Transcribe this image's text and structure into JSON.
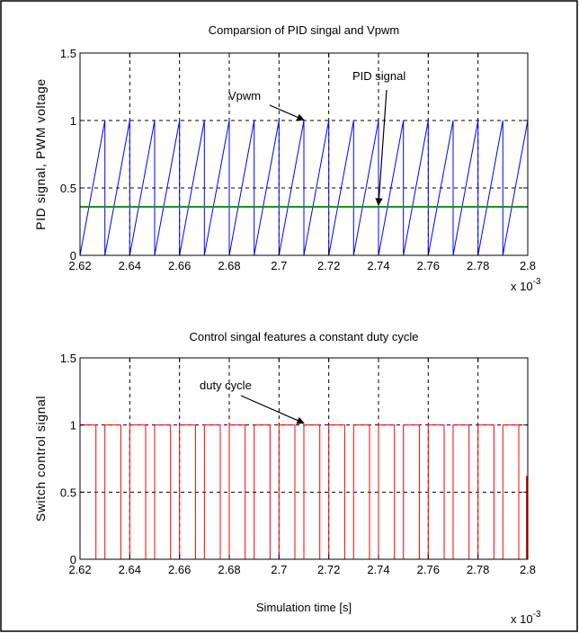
{
  "chart_data": [
    {
      "type": "line",
      "title": "Comparsion of PID singal and Vpwm",
      "ylabel": "PID signal, PWM voltage",
      "xlabel": "",
      "x_multiplier": "x 10",
      "x_exponent": "-3",
      "xlim": [
        2.62,
        2.8
      ],
      "ylim": [
        0,
        1.5
      ],
      "x_ticks": [
        "2.62",
        "2.64",
        "2.66",
        "2.68",
        "2.7",
        "2.72",
        "2.74",
        "2.76",
        "2.78",
        "2.8"
      ],
      "y_ticks": [
        "0",
        "0.5",
        "1",
        "1.5"
      ],
      "grid": true,
      "series": [
        {
          "name": "Vpwm",
          "color": "#0000ff",
          "kind": "sawtooth",
          "period": 0.01,
          "first_rise_start": 2.62,
          "min": 0,
          "max": 1
        },
        {
          "name": "PID signal",
          "color": "#00a000",
          "kind": "constant",
          "value": 0.36
        }
      ],
      "annotations": [
        {
          "text": "Vpwm",
          "target_x": 2.71,
          "target_y": 0.99
        },
        {
          "text": "PID signal",
          "target_x": 2.74,
          "target_y": 0.36
        }
      ]
    },
    {
      "type": "line",
      "title": "Control singal features a constant duty cycle",
      "ylabel": "Switch control signal",
      "xlabel": "Simulation time [s]",
      "x_multiplier": "x 10",
      "x_exponent": "-3",
      "xlim": [
        2.62,
        2.8
      ],
      "ylim": [
        0,
        1.5
      ],
      "x_ticks": [
        "2.62",
        "2.64",
        "2.66",
        "2.68",
        "2.7",
        "2.72",
        "2.74",
        "2.76",
        "2.78",
        "2.8"
      ],
      "y_ticks": [
        "0",
        "0.5",
        "1",
        "1.5"
      ],
      "grid": true,
      "series": [
        {
          "name": "duty cycle",
          "color": "#ff0000",
          "kind": "pwm",
          "period": 0.01,
          "first_rise": 2.62,
          "duty": 0.64,
          "low": 0,
          "high": 1
        }
      ],
      "annotations": [
        {
          "text": "duty cycle",
          "target_x": 2.71,
          "target_y": 1.0
        }
      ]
    }
  ]
}
